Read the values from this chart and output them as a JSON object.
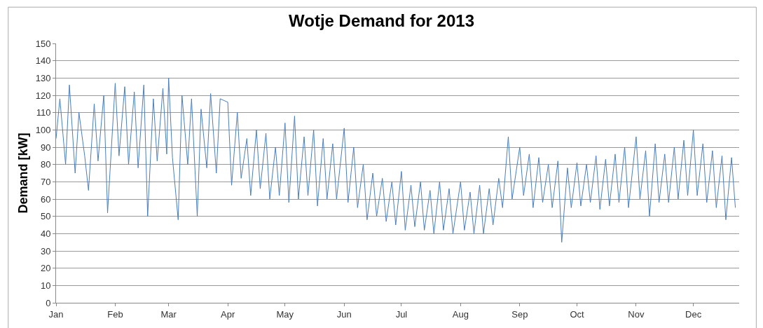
{
  "chart_data": {
    "type": "line",
    "title": "Wotje Demand for 2013",
    "ylabel": "Demand [kW]",
    "xlim": [
      "2013-01-01",
      "2013-12-25"
    ],
    "xticks": [
      {
        "value": "2013-01-01",
        "label": "Jan"
      },
      {
        "value": "2013-02-01",
        "label": "Feb"
      },
      {
        "value": "2013-03-01",
        "label": "Mar"
      },
      {
        "value": "2013-04-01",
        "label": "Apr"
      },
      {
        "value": "2013-05-01",
        "label": "May"
      },
      {
        "value": "2013-06-01",
        "label": "Jun"
      },
      {
        "value": "2013-07-01",
        "label": "Jul"
      },
      {
        "value": "2013-08-01",
        "label": "Aug"
      },
      {
        "value": "2013-09-01",
        "label": "Sep"
      },
      {
        "value": "2013-10-01",
        "label": "Oct"
      },
      {
        "value": "2013-11-01",
        "label": "Nov"
      },
      {
        "value": "2013-12-01",
        "label": "Dec"
      }
    ],
    "ylim": [
      0,
      150
    ],
    "yticks": [
      0,
      10,
      20,
      30,
      40,
      50,
      60,
      70,
      80,
      90,
      100,
      110,
      120,
      130,
      140,
      150
    ],
    "grid": "y",
    "marker": "none",
    "line_style": "solid",
    "series": [
      {
        "color": "#4a7ebf",
        "x": [
          "2013-01-01",
          "2013-01-03",
          "2013-01-06",
          "2013-01-08",
          "2013-01-11",
          "2013-01-13",
          "2013-01-16",
          "2013-01-18",
          "2013-01-21",
          "2013-01-23",
          "2013-01-26",
          "2013-01-28",
          "2013-02-01",
          "2013-02-03",
          "2013-02-06",
          "2013-02-08",
          "2013-02-11",
          "2013-02-13",
          "2013-02-16",
          "2013-02-18",
          "2013-02-21",
          "2013-02-23",
          "2013-02-26",
          "2013-02-28",
          "2013-03-01",
          "2013-03-03",
          "2013-03-06",
          "2013-03-08",
          "2013-03-11",
          "2013-03-13",
          "2013-03-16",
          "2013-03-18",
          "2013-03-21",
          "2013-03-23",
          "2013-03-26",
          "2013-03-28",
          "2013-04-01",
          "2013-04-03",
          "2013-04-06",
          "2013-04-08",
          "2013-04-11",
          "2013-04-13",
          "2013-04-16",
          "2013-04-18",
          "2013-04-21",
          "2013-04-23",
          "2013-04-26",
          "2013-04-28",
          "2013-05-01",
          "2013-05-03",
          "2013-05-06",
          "2013-05-08",
          "2013-05-11",
          "2013-05-13",
          "2013-05-16",
          "2013-05-18",
          "2013-05-21",
          "2013-05-23",
          "2013-05-26",
          "2013-05-28",
          "2013-06-01",
          "2013-06-03",
          "2013-06-06",
          "2013-06-08",
          "2013-06-11",
          "2013-06-13",
          "2013-06-16",
          "2013-06-18",
          "2013-06-21",
          "2013-06-23",
          "2013-06-26",
          "2013-06-28",
          "2013-07-01",
          "2013-07-03",
          "2013-07-06",
          "2013-07-08",
          "2013-07-11",
          "2013-07-13",
          "2013-07-16",
          "2013-07-18",
          "2013-07-21",
          "2013-07-23",
          "2013-07-26",
          "2013-07-28",
          "2013-08-01",
          "2013-08-03",
          "2013-08-06",
          "2013-08-08",
          "2013-08-11",
          "2013-08-13",
          "2013-08-16",
          "2013-08-18",
          "2013-08-21",
          "2013-08-23",
          "2013-08-26",
          "2013-08-28",
          "2013-09-01",
          "2013-09-03",
          "2013-09-06",
          "2013-09-08",
          "2013-09-11",
          "2013-09-13",
          "2013-09-16",
          "2013-09-18",
          "2013-09-21",
          "2013-09-23",
          "2013-09-26",
          "2013-09-28",
          "2013-10-01",
          "2013-10-03",
          "2013-10-06",
          "2013-10-08",
          "2013-10-11",
          "2013-10-13",
          "2013-10-16",
          "2013-10-18",
          "2013-10-21",
          "2013-10-23",
          "2013-10-26",
          "2013-10-28",
          "2013-11-01",
          "2013-11-03",
          "2013-11-06",
          "2013-11-08",
          "2013-11-11",
          "2013-11-13",
          "2013-11-16",
          "2013-11-18",
          "2013-11-21",
          "2013-11-23",
          "2013-11-26",
          "2013-11-28",
          "2013-12-01",
          "2013-12-03",
          "2013-12-06",
          "2013-12-08",
          "2013-12-11",
          "2013-12-13",
          "2013-12-16",
          "2013-12-18",
          "2013-12-21",
          "2013-12-23"
        ],
        "values": [
          95,
          118,
          80,
          126,
          75,
          110,
          85,
          65,
          115,
          82,
          120,
          52,
          127,
          85,
          125,
          80,
          122,
          78,
          126,
          50,
          118,
          82,
          124,
          86,
          130,
          84,
          48,
          120,
          80,
          118,
          50,
          112,
          78,
          121,
          75,
          118,
          116,
          68,
          110,
          72,
          95,
          62,
          100,
          66,
          98,
          60,
          90,
          62,
          104,
          58,
          108,
          60,
          96,
          62,
          100,
          56,
          95,
          60,
          92,
          60,
          101,
          58,
          90,
          55,
          80,
          48,
          75,
          50,
          72,
          47,
          70,
          45,
          76,
          42,
          68,
          44,
          70,
          42,
          65,
          40,
          70,
          42,
          66,
          40,
          70,
          42,
          64,
          40,
          68,
          40,
          66,
          45,
          72,
          55,
          96,
          60,
          90,
          62,
          86,
          55,
          84,
          58,
          80,
          55,
          82,
          35,
          78,
          55,
          81,
          56,
          80,
          58,
          85,
          54,
          83,
          56,
          86,
          58,
          90,
          55,
          96,
          60,
          88,
          50,
          92,
          58,
          86,
          58,
          90,
          60,
          94,
          62,
          100,
          62,
          92,
          58,
          88,
          55,
          85,
          48,
          84,
          55
        ]
      }
    ]
  }
}
